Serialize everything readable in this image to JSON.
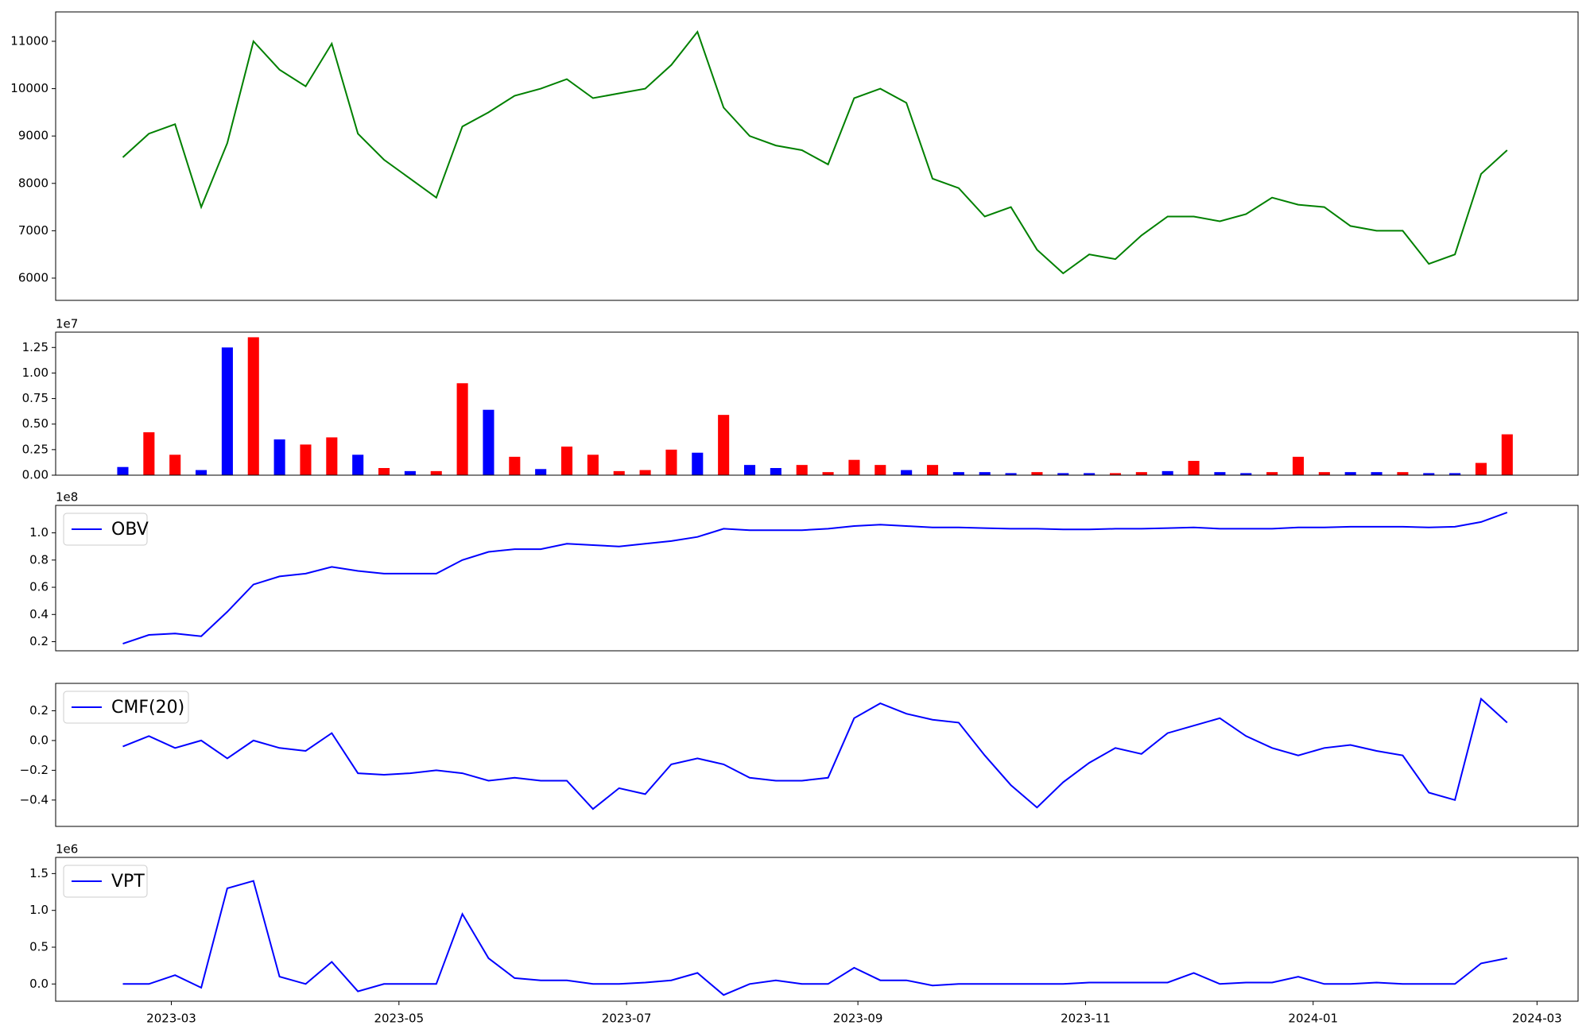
{
  "chart_data": [
    {
      "type": "line",
      "x": [
        19404,
        19411,
        19418,
        19425,
        19432,
        19439,
        19446,
        19453,
        19460,
        19467,
        19474,
        19481,
        19488,
        19495,
        19502,
        19509,
        19516,
        19523,
        19530,
        19537,
        19544,
        19551,
        19558,
        19565,
        19572,
        19579,
        19586,
        19593,
        19600,
        19607,
        19614,
        19621,
        19628,
        19635,
        19642,
        19649,
        19656,
        19663,
        19670,
        19677,
        19684,
        19691,
        19698,
        19705,
        19712,
        19719,
        19726,
        19733,
        19740,
        19747,
        19754,
        19761,
        19768,
        19775
      ],
      "series": [
        {
          "color": "#008000",
          "values": [
            8550,
            9050,
            9250,
            7500,
            8850,
            11000,
            10400,
            10050,
            10950,
            9050,
            8500,
            8100,
            7700,
            9200,
            9500,
            9850,
            10000,
            10200,
            9800,
            9900,
            10000,
            10500,
            11200,
            9600,
            9000,
            8800,
            8700,
            8400,
            9800,
            10000,
            9700,
            8100,
            7900,
            7300,
            7500,
            6600,
            6100,
            6500,
            6400,
            6900,
            7300,
            7300,
            7200,
            7350,
            7700,
            7550,
            7500,
            7100,
            7000,
            7000,
            6300,
            6500,
            8200,
            8700
          ]
        }
      ],
      "xlim": [
        19386,
        19794
      ],
      "ylim": [
        5530,
        11620
      ],
      "yticks": [
        6000,
        7000,
        8000,
        9000,
        10000,
        11000
      ]
    },
    {
      "type": "bar",
      "offset_text": "1e7",
      "x": [
        19404,
        19411,
        19418,
        19425,
        19432,
        19439,
        19446,
        19453,
        19460,
        19467,
        19474,
        19481,
        19488,
        19495,
        19502,
        19509,
        19516,
        19523,
        19530,
        19537,
        19544,
        19551,
        19558,
        19565,
        19572,
        19579,
        19586,
        19593,
        19600,
        19607,
        19614,
        19621,
        19628,
        19635,
        19642,
        19649,
        19656,
        19663,
        19670,
        19677,
        19684,
        19691,
        19698,
        19705,
        19712,
        19719,
        19726,
        19733,
        19740,
        19747,
        19754,
        19761,
        19768,
        19775
      ],
      "values": [
        0.08,
        0.42,
        0.2,
        0.05,
        1.25,
        1.35,
        0.35,
        0.3,
        0.37,
        0.2,
        0.07,
        0.04,
        0.04,
        0.9,
        0.64,
        0.18,
        0.06,
        0.28,
        0.2,
        0.04,
        0.05,
        0.25,
        0.22,
        0.59,
        0.1,
        0.07,
        0.1,
        0.03,
        0.15,
        0.1,
        0.05,
        0.1,
        0.03,
        0.03,
        0.02,
        0.03,
        0.02,
        0.02,
        0.02,
        0.03,
        0.04,
        0.14,
        0.03,
        0.02,
        0.03,
        0.18,
        0.03,
        0.03,
        0.03,
        0.03,
        0.02,
        0.02,
        0.12,
        0.4
      ],
      "colors": [
        "#0000ff",
        "#ff0000",
        "#ff0000",
        "#0000ff",
        "#0000ff",
        "#ff0000",
        "#0000ff",
        "#ff0000",
        "#ff0000",
        "#0000ff",
        "#ff0000",
        "#0000ff",
        "#ff0000",
        "#ff0000",
        "#0000ff",
        "#ff0000",
        "#0000ff",
        "#ff0000",
        "#ff0000",
        "#ff0000",
        "#ff0000",
        "#ff0000",
        "#0000ff",
        "#ff0000",
        "#0000ff",
        "#0000ff",
        "#ff0000",
        "#ff0000",
        "#ff0000",
        "#ff0000",
        "#0000ff",
        "#ff0000",
        "#0000ff",
        "#0000ff",
        "#0000ff",
        "#ff0000",
        "#0000ff",
        "#0000ff",
        "#ff0000",
        "#ff0000",
        "#0000ff",
        "#ff0000",
        "#0000ff",
        "#0000ff",
        "#ff0000",
        "#ff0000",
        "#ff0000",
        "#0000ff",
        "#0000ff",
        "#ff0000",
        "#0000ff",
        "#0000ff",
        "#ff0000",
        "#ff0000"
      ],
      "xlim": [
        19386,
        19794
      ],
      "ylim": [
        0,
        1.4
      ],
      "yticks": [
        {
          "value": 0,
          "label": "0.00"
        },
        0.25,
        {
          "value": 0.5,
          "label": "0.50"
        },
        {
          "value": 0.75,
          "label": "0.75"
        },
        {
          "value": 1,
          "label": "1.00"
        },
        {
          "value": 1.25,
          "label": "1.25"
        }
      ]
    },
    {
      "type": "line",
      "offset_text": "1e8",
      "legend": "upper left",
      "x": [
        19404,
        19411,
        19418,
        19425,
        19432,
        19439,
        19446,
        19453,
        19460,
        19467,
        19474,
        19481,
        19488,
        19495,
        19502,
        19509,
        19516,
        19523,
        19530,
        19537,
        19544,
        19551,
        19558,
        19565,
        19572,
        19579,
        19586,
        19593,
        19600,
        19607,
        19614,
        19621,
        19628,
        19635,
        19642,
        19649,
        19656,
        19663,
        19670,
        19677,
        19684,
        19691,
        19698,
        19705,
        19712,
        19719,
        19726,
        19733,
        19740,
        19747,
        19754,
        19761,
        19768,
        19775
      ],
      "series": [
        {
          "name": "OBV",
          "color": "#0000ff",
          "values": [
            0.185,
            0.25,
            0.26,
            0.24,
            0.42,
            0.62,
            0.68,
            0.7,
            0.75,
            0.72,
            0.7,
            0.7,
            0.7,
            0.8,
            0.86,
            0.88,
            0.88,
            0.92,
            0.91,
            0.9,
            0.92,
            0.94,
            0.97,
            1.03,
            1.02,
            1.02,
            1.02,
            1.03,
            1.05,
            1.06,
            1.05,
            1.04,
            1.04,
            1.035,
            1.03,
            1.03,
            1.025,
            1.025,
            1.03,
            1.03,
            1.035,
            1.04,
            1.03,
            1.03,
            1.03,
            1.04,
            1.04,
            1.045,
            1.045,
            1.045,
            1.04,
            1.045,
            1.08,
            1.15
          ]
        }
      ],
      "xlim": [
        19386,
        19794
      ],
      "ylim": [
        0.133,
        1.202
      ],
      "yticks": [
        0.2,
        0.4,
        0.6,
        0.8,
        {
          "value": 1,
          "label": "1.0"
        }
      ]
    },
    {
      "type": "line",
      "legend": "upper left",
      "x": [
        19404,
        19411,
        19418,
        19425,
        19432,
        19439,
        19446,
        19453,
        19460,
        19467,
        19474,
        19481,
        19488,
        19495,
        19502,
        19509,
        19516,
        19523,
        19530,
        19537,
        19544,
        19551,
        19558,
        19565,
        19572,
        19579,
        19586,
        19593,
        19600,
        19607,
        19614,
        19621,
        19628,
        19635,
        19642,
        19649,
        19656,
        19663,
        19670,
        19677,
        19684,
        19691,
        19698,
        19705,
        19712,
        19719,
        19726,
        19733,
        19740,
        19747,
        19754,
        19761,
        19768,
        19775
      ],
      "series": [
        {
          "name": "CMF(20)",
          "color": "#0000ff",
          "values": [
            -0.04,
            0.03,
            -0.05,
            0.0,
            -0.12,
            0.0,
            -0.05,
            -0.07,
            0.05,
            -0.22,
            -0.23,
            -0.22,
            -0.2,
            -0.22,
            -0.27,
            -0.25,
            -0.27,
            -0.27,
            -0.46,
            -0.32,
            -0.36,
            -0.16,
            -0.12,
            -0.16,
            -0.25,
            -0.27,
            -0.27,
            -0.25,
            0.15,
            0.25,
            0.18,
            0.14,
            0.12,
            -0.1,
            -0.3,
            -0.45,
            -0.28,
            -0.15,
            -0.05,
            -0.09,
            0.05,
            0.1,
            0.15,
            0.03,
            -0.05,
            -0.1,
            -0.05,
            -0.03,
            -0.07,
            -0.1,
            -0.35,
            -0.4,
            0.28,
            0.12
          ]
        }
      ],
      "xlim": [
        19386,
        19794
      ],
      "ylim": [
        -0.577,
        0.384
      ],
      "yticks": [
        {
          "value": -0.4,
          "label": "−0.4"
        },
        {
          "value": -0.2,
          "label": "−0.2"
        },
        {
          "value": 0,
          "label": "0.0"
        },
        0.2
      ]
    },
    {
      "type": "line",
      "offset_text": "1e6",
      "legend": "upper left",
      "x": [
        19404,
        19411,
        19418,
        19425,
        19432,
        19439,
        19446,
        19453,
        19460,
        19467,
        19474,
        19481,
        19488,
        19495,
        19502,
        19509,
        19516,
        19523,
        19530,
        19537,
        19544,
        19551,
        19558,
        19565,
        19572,
        19579,
        19586,
        19593,
        19600,
        19607,
        19614,
        19621,
        19628,
        19635,
        19642,
        19649,
        19656,
        19663,
        19670,
        19677,
        19684,
        19691,
        19698,
        19705,
        19712,
        19719,
        19726,
        19733,
        19740,
        19747,
        19754,
        19761,
        19768,
        19775
      ],
      "series": [
        {
          "name": "VPT",
          "color": "#0000ff",
          "values": [
            0.0,
            0.0,
            0.12,
            -0.05,
            1.3,
            1.4,
            0.1,
            0.0,
            0.3,
            -0.1,
            0.0,
            0.0,
            0.0,
            0.95,
            0.35,
            0.08,
            0.05,
            0.05,
            0.0,
            0.0,
            0.02,
            0.05,
            0.15,
            -0.15,
            0.0,
            0.05,
            0.0,
            0.0,
            0.22,
            0.05,
            0.05,
            -0.02,
            0.0,
            0.0,
            0.0,
            0.0,
            0.0,
            0.02,
            0.02,
            0.02,
            0.02,
            0.15,
            0.0,
            0.02,
            0.02,
            0.1,
            0.0,
            0.0,
            0.02,
            0.0,
            0.0,
            0.0,
            0.28,
            0.35
          ]
        }
      ],
      "xlim": [
        19386,
        19794
      ],
      "ylim": [
        -0.234,
        1.72
      ],
      "yticks": [
        {
          "value": 0,
          "label": "0.0"
        },
        0.5,
        {
          "value": 1,
          "label": "1.0"
        },
        1.5
      ],
      "xticks": [
        {
          "value": 19417,
          "label": "2023-03"
        },
        {
          "value": 19478,
          "label": "2023-05"
        },
        {
          "value": 19539,
          "label": "2023-07"
        },
        {
          "value": 19601,
          "label": "2023-09"
        },
        {
          "value": 19662,
          "label": "2023-11"
        },
        {
          "value": 19723,
          "label": "2024-01"
        },
        {
          "value": 19783,
          "label": "2024-03"
        }
      ]
    }
  ]
}
